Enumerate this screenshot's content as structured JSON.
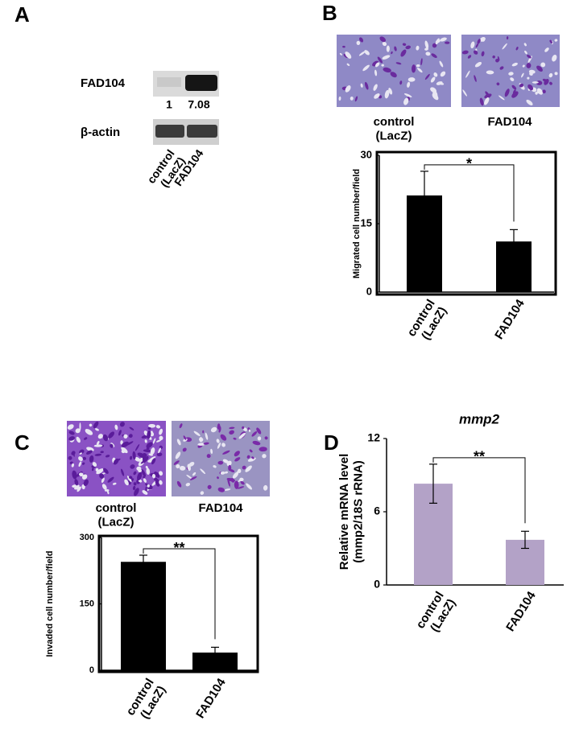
{
  "panel_labels": [
    "A",
    "B",
    "C",
    "D"
  ],
  "blot": {
    "rows": [
      "FAD104",
      "β-actin"
    ],
    "quantification": [
      1,
      7.08
    ],
    "lanes": [
      "control\n(LacZ)",
      "FAD104"
    ]
  },
  "chart_data": [
    {
      "type": "bar",
      "ylabel": "Migrated cell number/field",
      "categories": [
        "control\n(LacZ)",
        "FAD104"
      ],
      "values": [
        21.2,
        11.1
      ],
      "errors": [
        5.3,
        2.6
      ],
      "color": "#000000",
      "ylim": [
        0,
        30
      ],
      "yticks": [
        0,
        15,
        30
      ],
      "frame": true,
      "significance": "*",
      "image_captions": [
        "control\n(LacZ)",
        "FAD104"
      ]
    },
    {
      "type": "bar",
      "ylabel": "Invaded cell number/field",
      "categories": [
        "control\n(LacZ)",
        "FAD104"
      ],
      "values": [
        245,
        40
      ],
      "errors": [
        15,
        12
      ],
      "color": "#000000",
      "ylim": [
        0,
        300
      ],
      "yticks": [
        0,
        150,
        300
      ],
      "frame": true,
      "significance": "**",
      "image_captions": [
        "control\n(LacZ)",
        "FAD104"
      ]
    },
    {
      "type": "bar",
      "title": "mmp2",
      "ylabel": "Relative mRNA level\n(mmp2/18S rRNA)",
      "categories": [
        "control\n(LacZ)",
        "FAD104"
      ],
      "values": [
        8.3,
        3.7
      ],
      "errors": [
        1.6,
        0.7
      ],
      "color": "#b3a2c7",
      "ylim": [
        0,
        12
      ],
      "yticks": [
        0,
        6,
        12
      ],
      "frame": false,
      "significance": "**"
    }
  ]
}
